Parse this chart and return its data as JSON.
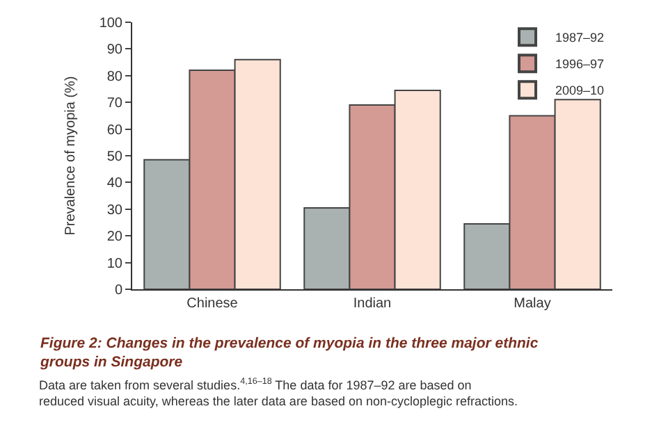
{
  "chart_data": {
    "type": "bar",
    "title": "Figure 2: Changes in the prevalence of myopia in the three major ethnic groups in Singapore",
    "ylabel": "Prevalence of myopia (%)",
    "categories": [
      "Chinese",
      "Indian",
      "Malay"
    ],
    "series": [
      {
        "name": "1987–92",
        "color": "#a9b2b0",
        "values": [
          48.5,
          30.5,
          24.5
        ]
      },
      {
        "name": "1996–97",
        "color": "#d49a94",
        "values": [
          82,
          69,
          65
        ]
      },
      {
        "name": "2009–10",
        "color": "#fde3d6",
        "values": [
          86,
          74.5,
          71
        ]
      }
    ],
    "ylim": [
      0,
      100
    ],
    "yticks": [
      0,
      10,
      20,
      30,
      40,
      50,
      60,
      70,
      80,
      90,
      100
    ],
    "legend": "top right",
    "annotations": [
      "Data are taken from several studies.$^{4,16–18}$ The data for 1987–92 are based on reduced visual acuity, whereas the later data are based on non-cycloplegic refractions."
    ]
  }
}
